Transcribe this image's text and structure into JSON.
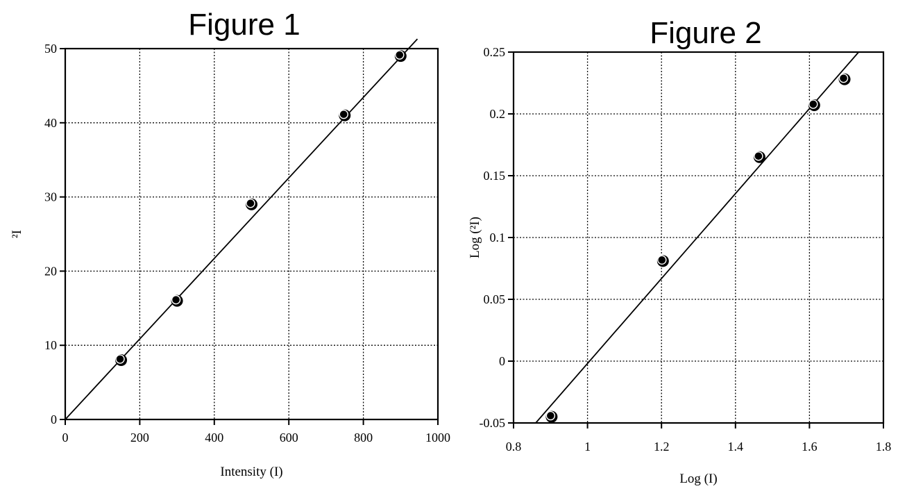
{
  "chart_data": [
    {
      "type": "scatter",
      "title": "Figure 1",
      "xlabel": "Intensity (I)",
      "ylabel": "²I",
      "xlim": [
        0,
        1000
      ],
      "ylim": [
        0,
        50
      ],
      "x_ticks": [
        0,
        200,
        400,
        600,
        800,
        1000
      ],
      "y_ticks": [
        0,
        10,
        20,
        30,
        40,
        50
      ],
      "x_tick_labels": [
        "0",
        "200",
        "400",
        "600",
        "800",
        "1000"
      ],
      "y_tick_labels": [
        "0",
        "10",
        "20",
        "30",
        "40",
        "50"
      ],
      "grid": true,
      "series": [
        {
          "x": [
            150,
            300,
            500,
            750,
            900
          ],
          "y": [
            8,
            16,
            29,
            41,
            49
          ]
        }
      ],
      "fit_line": {
        "x": [
          0,
          945
        ],
        "y": [
          0,
          51.3
        ]
      }
    },
    {
      "type": "scatter",
      "title": "Figure 2",
      "xlabel": "Log (I)",
      "ylabel": "Log (²I)",
      "xlim": [
        0.8,
        1.8
      ],
      "ylim": [
        -0.05,
        0.25
      ],
      "x_ticks": [
        0.8,
        1.0,
        1.2,
        1.4,
        1.6,
        1.8
      ],
      "y_ticks": [
        -0.05,
        0,
        0.05,
        0.1,
        0.15,
        0.2,
        0.25
      ],
      "x_tick_labels": [
        "0.8",
        "1",
        "1.2",
        "1.4",
        "1.6",
        "1.8"
      ],
      "y_tick_labels": [
        "-0.05",
        "0",
        "0.05",
        "0.1",
        "0.15",
        "0.2",
        "0.25"
      ],
      "grid": true,
      "series": [
        {
          "x": [
            0.903,
            1.204,
            1.465,
            1.613,
            1.695
          ],
          "y": [
            -0.045,
            0.081,
            0.165,
            0.207,
            0.228
          ]
        }
      ],
      "fit_line": {
        "x": [
          0.86,
          1.733
        ],
        "y": [
          -0.05,
          0.25
        ]
      }
    }
  ]
}
